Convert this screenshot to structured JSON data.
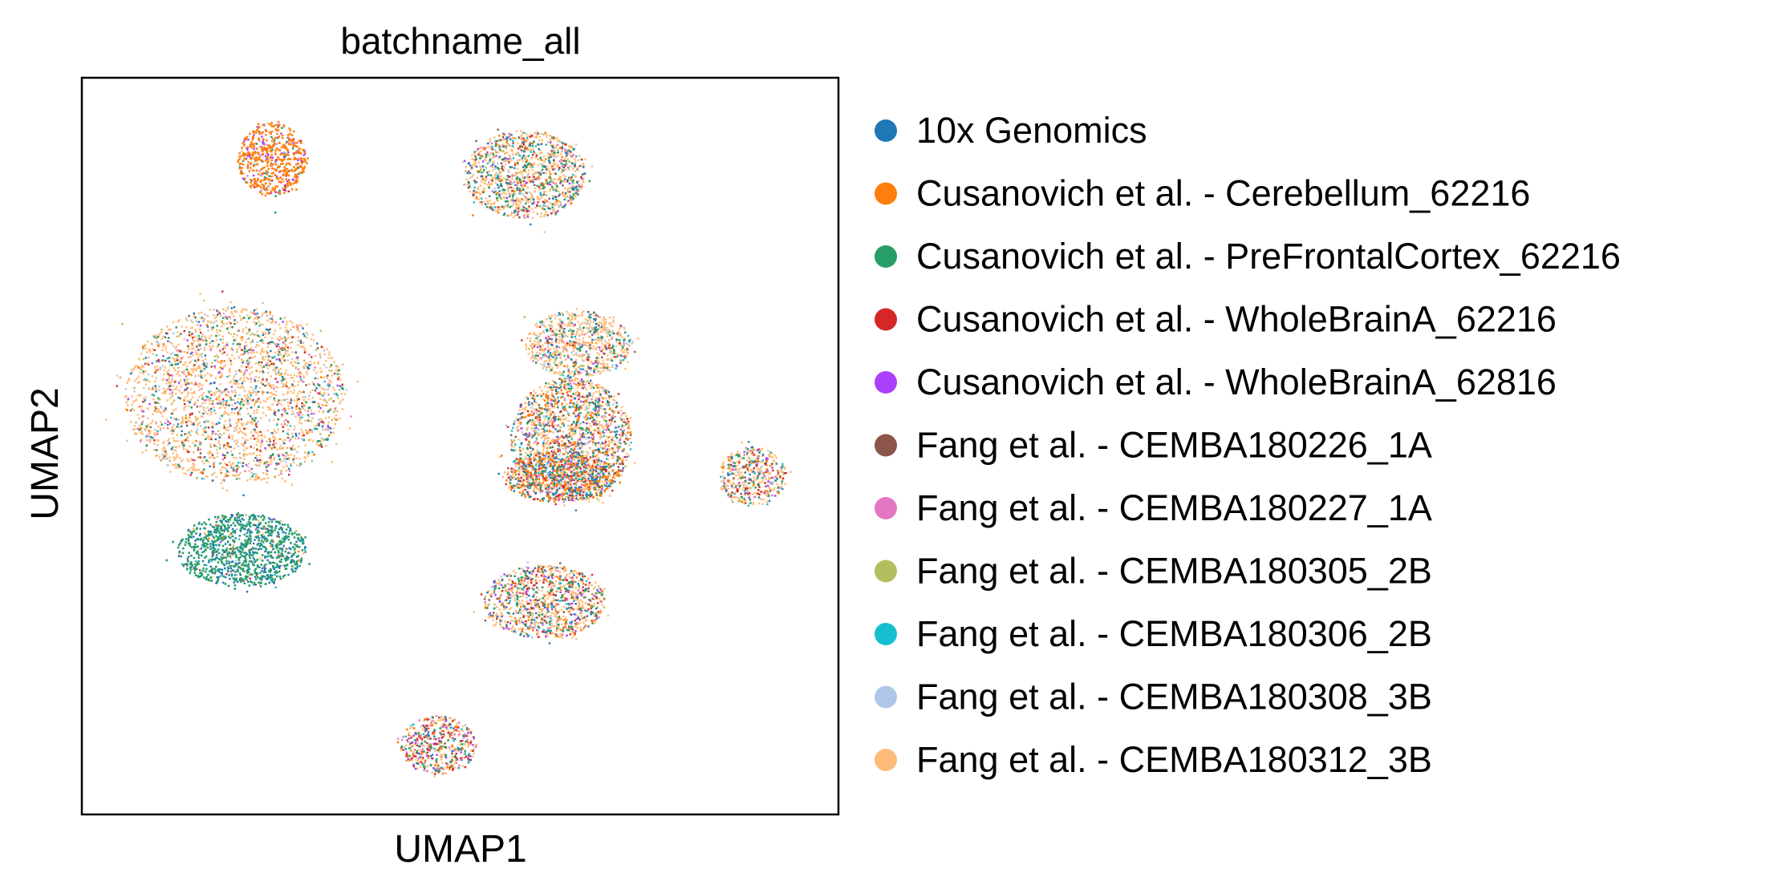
{
  "chart_data": {
    "type": "scatter",
    "title": "batchname_all",
    "xlabel": "UMAP1",
    "ylabel": "UMAP2",
    "xlim": [
      0,
      10
    ],
    "ylim": [
      0,
      10
    ],
    "grid": false,
    "ticks": false,
    "legend_position": "right, outside plot",
    "series": [
      {
        "name": "10x Genomics",
        "color": "#1f77b4"
      },
      {
        "name": "Cusanovich et al. - Cerebellum_62216",
        "color": "#ff7f0e"
      },
      {
        "name": "Cusanovich et al. - PreFrontalCortex_62216",
        "color": "#279e68"
      },
      {
        "name": "Cusanovich et al. - WholeBrainA_62216",
        "color": "#d62728"
      },
      {
        "name": "Cusanovich et al. - WholeBrainA_62816",
        "color": "#aa40fc"
      },
      {
        "name": "Fang et al. - CEMBA180226_1A",
        "color": "#8c564b"
      },
      {
        "name": "Fang et al. - CEMBA180227_1A",
        "color": "#e377c2"
      },
      {
        "name": "Fang et al. - CEMBA180305_2B",
        "color": "#b5bd61"
      },
      {
        "name": "Fang et al. - CEMBA180306_2B",
        "color": "#17becf"
      },
      {
        "name": "Fang et al. - CEMBA180308_3B",
        "color": "#aec7e8"
      },
      {
        "name": "Fang et al. - CEMBA180312_3B",
        "color": "#ffbb78"
      }
    ],
    "clusters": [
      {
        "cx": 2.5,
        "cy": 8.9,
        "rx": 0.45,
        "ry": 0.5,
        "weights": [
          1,
          60,
          3,
          2,
          10,
          1,
          6,
          1,
          1,
          1,
          4
        ]
      },
      {
        "cx": 5.85,
        "cy": 8.7,
        "rx": 0.8,
        "ry": 0.6,
        "weights": [
          6,
          3,
          8,
          3,
          2,
          5,
          3,
          3,
          4,
          4,
          45
        ]
      },
      {
        "cx": 2.0,
        "cy": 5.7,
        "rx": 1.45,
        "ry": 1.2,
        "weights": [
          5,
          3,
          4,
          3,
          2,
          4,
          3,
          4,
          3,
          5,
          60
        ]
      },
      {
        "cx": 2.1,
        "cy": 3.6,
        "rx": 0.85,
        "ry": 0.5,
        "weights": [
          25,
          1,
          60,
          1,
          1,
          1,
          1,
          2,
          4,
          1,
          3
        ]
      },
      {
        "cx": 6.55,
        "cy": 6.4,
        "rx": 0.7,
        "ry": 0.45,
        "weights": [
          4,
          2,
          5,
          2,
          2,
          4,
          2,
          3,
          3,
          6,
          50
        ]
      },
      {
        "cx": 6.45,
        "cy": 5.1,
        "rx": 0.8,
        "ry": 0.85,
        "weights": [
          8,
          10,
          6,
          5,
          3,
          5,
          4,
          3,
          4,
          4,
          45
        ]
      },
      {
        "cx": 6.3,
        "cy": 4.6,
        "rx": 0.75,
        "ry": 0.35,
        "weights": [
          15,
          20,
          5,
          12,
          3,
          3,
          2,
          2,
          3,
          2,
          15
        ]
      },
      {
        "cx": 8.85,
        "cy": 4.6,
        "rx": 0.45,
        "ry": 0.4,
        "weights": [
          4,
          3,
          6,
          5,
          5,
          5,
          5,
          3,
          3,
          3,
          45
        ]
      },
      {
        "cx": 6.1,
        "cy": 2.9,
        "rx": 0.8,
        "ry": 0.5,
        "weights": [
          6,
          6,
          8,
          5,
          6,
          6,
          5,
          3,
          4,
          3,
          40
        ]
      },
      {
        "cx": 4.7,
        "cy": 0.95,
        "rx": 0.5,
        "ry": 0.4,
        "weights": [
          5,
          8,
          6,
          10,
          5,
          6,
          8,
          3,
          3,
          3,
          35
        ]
      }
    ]
  }
}
